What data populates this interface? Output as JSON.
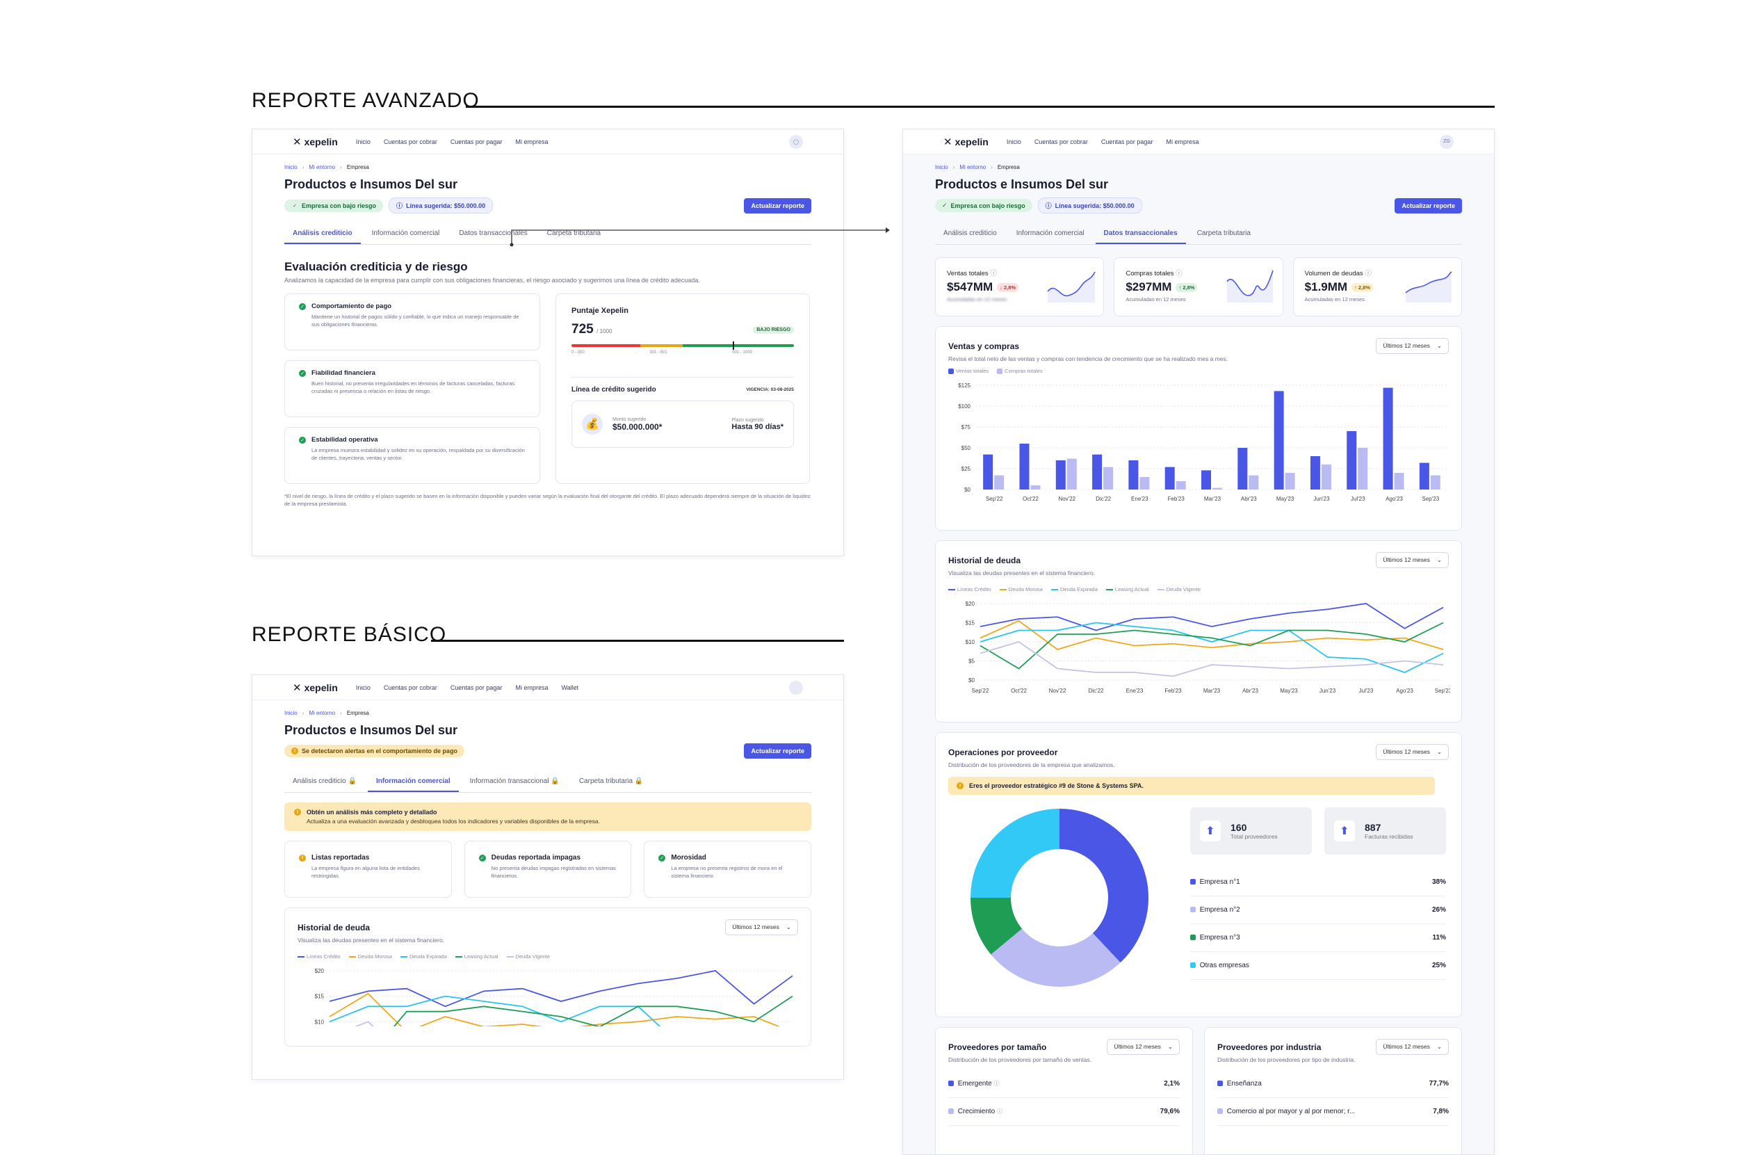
{
  "sections": {
    "advanced": "REPORTE AVANZADO",
    "basic": "REPORTE BÁSICO"
  },
  "nav": {
    "logo": "xepelin",
    "items": [
      "Inicio",
      "Cuentas por cobrar",
      "Cuentas por pagar",
      "Mi empresa"
    ],
    "items_basic": [
      "Inicio",
      "Cuentas por cobrar",
      "Cuentas por pagar",
      "Mi empresa",
      "Wallet"
    ],
    "avatar_initials": "ZG"
  },
  "breadcrumb": [
    "Inicio",
    "Mi entorno",
    "Empresa"
  ],
  "company": "Productos e Insumos Del sur",
  "badges": {
    "low_risk": "Empresa con bajo riesgo",
    "credit_line": "Línea sugerida: $50.000.00",
    "alert": "Se detectaron alertas en el comportamiento de pago"
  },
  "update_button": "Actualizar reporte",
  "tabs": [
    "Análisis crediticio",
    "Información comercial",
    "Datos transaccionales",
    "Carpeta tributaria"
  ],
  "tabs_basic": [
    "Análisis crediticio",
    "Información comercial",
    "Información transaccional",
    "Carpeta tributaria"
  ],
  "eval": {
    "title": "Evaluación crediticia y de riesgo",
    "subtitle": "Analizamos la capacidad de la empresa para cumplir con sus obligaciones financieras, el riesgo asociado y sugerimos una línea de crédito adecuada.",
    "items": [
      {
        "title": "Comportamiento de pago",
        "desc": "Mantiene un historial de pagos sólido y confiable, lo que indica un manejo responsable de sus obligaciones financieras."
      },
      {
        "title": "Fiabilidad financiera",
        "desc": "Buen historial, no presenta irregularidades en términos de facturas canceladas, facturas cruzadas ni presencia o relación en listas de riesgo."
      },
      {
        "title": "Estabilidad operativa",
        "desc": "La empresa muestra estabilidad y solidez en su operación, respaldada por su diversificación de clientes, trayectoria, ventas y sector."
      }
    ],
    "score_title": "Puntaje Xepelin",
    "score": "725",
    "score_max": "/ 1000",
    "score_badge": "BAJO RIESGO",
    "score_value": 725,
    "ranges": [
      "0 - 300",
      "301 - 501",
      "501 - 1000"
    ],
    "credit_title": "Línea de crédito sugerido",
    "validity": "VIGENCIA: 03-08-2025",
    "amount_label": "Monto sugerido",
    "amount": "$50.000.000*",
    "term_label": "Plazo sugerido",
    "term": "Hasta 90 días*",
    "footnote": "*El nivel de riesgo, la línea de crédito y el plazo sugerido se basen en la información disponible y pueden variar según la evaluación final del otorgante del crédito. El plazo adecuado dependerá siempre de la situación de liquidez de la empresa prestamista."
  },
  "kpis": [
    {
      "label": "Ventas totales",
      "value": "$547MM",
      "delta": "2,8%",
      "caption": "Acumuladas en 12 meses"
    },
    {
      "label": "Compras totales",
      "value": "$297MM",
      "delta": "2,8%",
      "caption": "Acumuladas en 12 meses"
    },
    {
      "label": "Volumen de deudas",
      "value": "$1.9MM",
      "delta": "2,8%",
      "caption": "Acumuladas en 12 meses"
    }
  ],
  "period": "Últimos 12 meses",
  "chart_data": [
    {
      "type": "bar",
      "title": "Ventas y compras",
      "subtitle": "Revisa el total neto de las ventas y compras con tendencia de crecimiento que se ha realizado mes a mes.",
      "categories": [
        "Sep'22",
        "Oct'22",
        "Nov'22",
        "Dic'22",
        "Ene'23",
        "Feb'23",
        "Mar'23",
        "Abr'23",
        "May'23",
        "Jun'23",
        "Jul'23",
        "Ago'23",
        "Sep'23"
      ],
      "y_ticks": [
        "$0",
        "$25",
        "$50",
        "$75",
        "$100",
        "$125"
      ],
      "ylim": [
        0,
        125
      ],
      "series": [
        {
          "name": "Ventas totales",
          "color": "#4a56e6",
          "values": [
            42,
            55,
            35,
            42,
            35,
            27,
            23,
            50,
            118,
            40,
            70,
            122,
            32
          ]
        },
        {
          "name": "Compras totales",
          "color": "#b9bbf2",
          "values": [
            17,
            5,
            37,
            27,
            15,
            10,
            2,
            17,
            20,
            30,
            50,
            20,
            17
          ]
        }
      ]
    },
    {
      "type": "line",
      "title": "Historial de deuda",
      "subtitle": "Visualiza las deudas presentes en el sistema financiero.",
      "categories": [
        "Sep'22",
        "Oct'22",
        "Nov'22",
        "Dic'22",
        "Ene'23",
        "Feb'23",
        "Mar'23",
        "Abr'23",
        "May'23",
        "Jun'23",
        "Jul'23",
        "Ago'23",
        "Sep'23"
      ],
      "y_ticks": [
        "$0",
        "$5",
        "$10",
        "$15",
        "$20"
      ],
      "ylim": [
        0,
        20
      ],
      "series": [
        {
          "name": "Líneas Crédito",
          "color": "#4a56e6",
          "values": [
            14,
            16,
            16.5,
            13,
            16,
            16.5,
            14,
            16,
            17.5,
            18.5,
            20,
            13.5,
            19
          ]
        },
        {
          "name": "Deuda Morosa",
          "color": "#f0a818",
          "values": [
            11,
            15.5,
            8,
            11,
            9,
            9.5,
            8.5,
            9.5,
            10,
            11,
            10.5,
            11,
            8
          ]
        },
        {
          "name": "Deuda Expirada",
          "color": "#27c4f0",
          "values": [
            10,
            13,
            13,
            15,
            14,
            13,
            10,
            13,
            13,
            6,
            5.5,
            2,
            7
          ]
        },
        {
          "name": "Leasing Actual",
          "color": "#1f9d55",
          "values": [
            9,
            3,
            12,
            12,
            13,
            12,
            11,
            9,
            13,
            13,
            12,
            10,
            15
          ]
        },
        {
          "name": "Deuda Vigente",
          "color": "#c3c3e6",
          "values": [
            7,
            10,
            3,
            2,
            2,
            1,
            4,
            3.5,
            3,
            3.5,
            4,
            5,
            4
          ]
        }
      ]
    },
    {
      "type": "pie",
      "title": "Operaciones por proveedor",
      "subtitle": "Distribución de los proveedores de la empresa que analizamos.",
      "labels": [
        "Empresa n°1",
        "Empresa n°2",
        "Empresa n°3",
        "Otras empresas"
      ],
      "values": [
        38,
        26,
        11,
        25
      ],
      "display": [
        "38%",
        "26%",
        "11%",
        "25%"
      ],
      "colors": [
        "#4a56e6",
        "#b9bbf2",
        "#1f9d55",
        "#33c9f7"
      ]
    }
  ],
  "suppliers": {
    "alert": "Eres el proveedor estratégico #9 de Stone & Systems SPA.",
    "total": "160",
    "total_label": "Total proveedores",
    "invoices": "887",
    "invoices_label": "Facturas recibidas"
  },
  "by_size": {
    "title": "Proveedores por tamaño",
    "subtitle": "Distribución de los proveedores por tamaño de ventas.",
    "rows": [
      {
        "label": "Emergente",
        "pct": "2,1%"
      },
      {
        "label": "Crecimiento",
        "pct": "79,6%"
      }
    ]
  },
  "by_industry": {
    "title": "Proveedores por industria",
    "subtitle": "Distribución de los proveedores por tipo de industria.",
    "rows": [
      {
        "label": "Enseñanza",
        "pct": "77,7%"
      },
      {
        "label": "Comercio al por mayor y al por menor; r...",
        "pct": "7,8%"
      }
    ]
  },
  "basic": {
    "upsell_title": "Obtén un análisis más completo y detallado",
    "upsell_text": "Actualiza a una evaluación avanzada y desbloquea todos los indicadores y variables disponibles de la empresa.",
    "items": [
      {
        "title": "Listas reportadas",
        "desc": "La empresa figura en alguna lista de entidades restringidas."
      },
      {
        "title": "Deudas reportada impagas",
        "desc": "No presenta deudas impagas registradas en sistemas financieros."
      },
      {
        "title": "Morosidad",
        "desc": "La empresa no presenta registros de mora en el sistema financiero"
      }
    ],
    "y_ticks": [
      "$10",
      "$15",
      "$20"
    ]
  }
}
